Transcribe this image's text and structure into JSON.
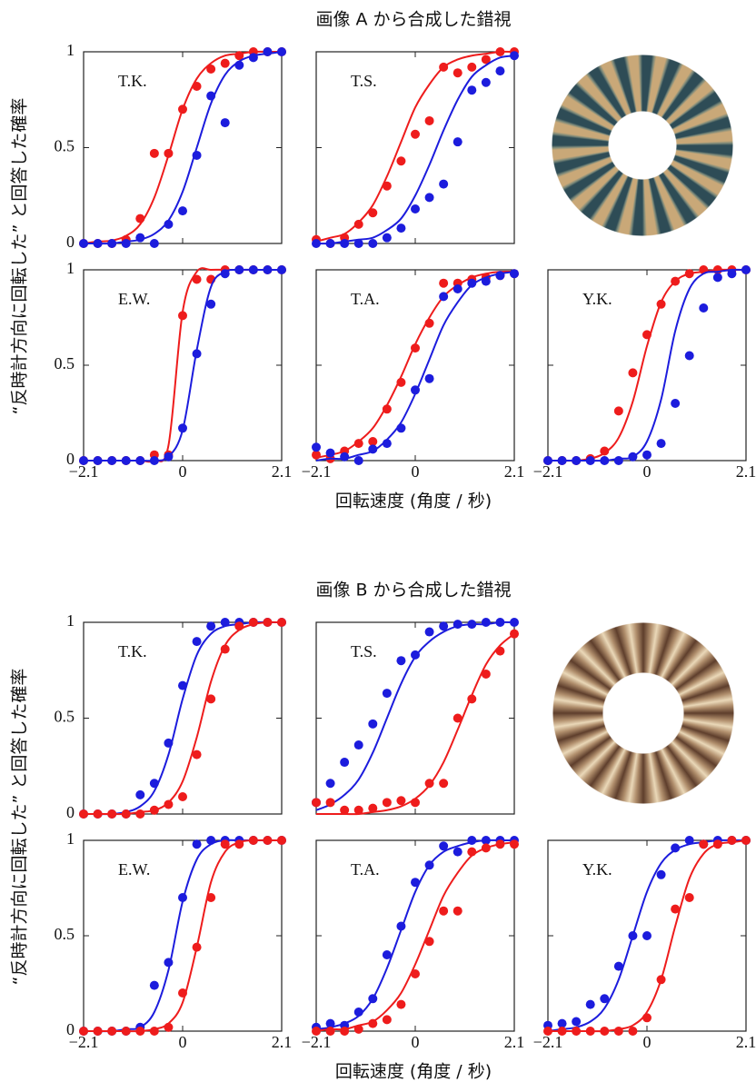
{
  "chart_data": [
    {
      "type": "scatter",
      "title": "画像 A から合成した錯視",
      "xlabel": "回転速度 (角度 / 秒)",
      "ylabel": "“反時計方向に回転した” と回答した確率",
      "xlim": [
        -2.1,
        2.1
      ],
      "ylim": [
        0,
        1
      ],
      "xticks": [
        {
          "value": -2.1,
          "label": "−2.1"
        },
        0,
        2.1
      ],
      "yticks": [
        0,
        0.5,
        1
      ],
      "x": [
        -2.1,
        -1.8,
        -1.5,
        -1.2,
        -0.9,
        -0.6,
        -0.3,
        0,
        0.3,
        0.6,
        0.9,
        1.2,
        1.5,
        1.8,
        2.1
      ],
      "panels": [
        {
          "label": "T.K.",
          "series": [
            {
              "color": "#ee1c1c",
              "values": [
                0,
                0,
                0,
                0.02,
                0.13,
                0.47,
                0.47,
                0.7,
                0.82,
                0.91,
                0.94,
                0.98,
                1,
                1,
                1
              ],
              "fit": [
                0,
                0.01,
                0.015,
                0.04,
                0.1,
                0.24,
                0.46,
                0.7,
                0.86,
                0.94,
                0.98,
                0.99,
                1,
                1,
                1
              ]
            },
            {
              "color": "#1c1cdd",
              "values": [
                0,
                0,
                0,
                0,
                0.03,
                0,
                0.1,
                0.17,
                0.46,
                0.77,
                0.63,
                0.93,
                0.97,
                1,
                1
              ],
              "fit": [
                0,
                0,
                0,
                0.01,
                0.02,
                0.05,
                0.12,
                0.27,
                0.5,
                0.73,
                0.88,
                0.95,
                0.98,
                0.99,
                1
              ]
            }
          ]
        },
        {
          "label": "T.S.",
          "series": [
            {
              "color": "#ee1c1c",
              "values": [
                0.02,
                0,
                0.03,
                0.1,
                0.16,
                0.3,
                0.43,
                0.57,
                0.64,
                0.92,
                0.89,
                0.92,
                0.96,
                1,
                1
              ],
              "fit": [
                0.01,
                0.03,
                0.05,
                0.11,
                0.2,
                0.35,
                0.53,
                0.71,
                0.83,
                0.92,
                0.96,
                0.98,
                0.99,
                1,
                1
              ]
            },
            {
              "color": "#1c1cdd",
              "values": [
                0,
                0,
                0,
                0,
                0,
                0.03,
                0.08,
                0.18,
                0.24,
                0.31,
                0.53,
                0.8,
                0.84,
                0.9,
                0.98
              ],
              "fit": [
                0,
                0,
                0.01,
                0.02,
                0.03,
                0.07,
                0.13,
                0.25,
                0.41,
                0.59,
                0.75,
                0.87,
                0.93,
                0.97,
                0.98
              ]
            }
          ]
        },
        {
          "label": "E.W.",
          "series": [
            {
              "color": "#ee1c1c",
              "values": [
                0,
                0,
                0,
                0,
                0,
                0.03,
                0.03,
                0.76,
                0.95,
                0.95,
                1,
                1,
                1,
                1,
                1
              ],
              "fit": [
                0,
                0,
                0,
                0,
                0,
                0,
                0.08,
                0.78,
                0.99,
                1,
                1,
                1,
                1,
                1,
                1
              ]
            },
            {
              "color": "#1c1cdd",
              "values": [
                0,
                0,
                0,
                0,
                0,
                0,
                0.02,
                0.17,
                0.56,
                0.82,
                0.98,
                1,
                1,
                1,
                1
              ],
              "fit": [
                0,
                0,
                0,
                0,
                0,
                0,
                0.02,
                0.16,
                0.58,
                0.91,
                0.99,
                1,
                1,
                1,
                1
              ]
            }
          ]
        },
        {
          "label": "T.A.",
          "series": [
            {
              "color": "#ee1c1c",
              "values": [
                0.03,
                0.01,
                0.05,
                0.09,
                0.1,
                0.27,
                0.41,
                0.59,
                0.72,
                0.93,
                0.93,
                0.95,
                0.96,
                0.97,
                0.98
              ],
              "fit": [
                0.015,
                0.03,
                0.05,
                0.1,
                0.17,
                0.29,
                0.44,
                0.61,
                0.75,
                0.86,
                0.92,
                0.96,
                0.98,
                0.99,
                0.99
              ]
            },
            {
              "color": "#1c1cdd",
              "values": [
                0.07,
                0.04,
                0.02,
                0,
                0.06,
                0.09,
                0.17,
                0.37,
                0.43,
                0.86,
                0.9,
                0.93,
                0.94,
                0.97,
                0.98
              ],
              "fit": [
                0,
                0.01,
                0.01,
                0.03,
                0.05,
                0.11,
                0.2,
                0.35,
                0.53,
                0.71,
                0.83,
                0.92,
                0.96,
                0.98,
                0.99
              ]
            }
          ]
        },
        {
          "label": "Y.K.",
          "series": [
            {
              "color": "#ee1c1c",
              "values": [
                0,
                0,
                0,
                0.01,
                0.05,
                0.26,
                0.46,
                0.66,
                0.82,
                0.94,
                0.98,
                1,
                1,
                1,
                1
              ],
              "fit": [
                0,
                0,
                0,
                0.01,
                0.04,
                0.12,
                0.31,
                0.6,
                0.83,
                0.94,
                0.98,
                0.99,
                1,
                1,
                1
              ]
            },
            {
              "color": "#1c1cdd",
              "values": [
                0,
                0,
                0,
                0,
                0,
                0,
                0.02,
                0.03,
                0.09,
                0.3,
                0.55,
                0.8,
                0.96,
                0.98,
                1
              ],
              "fit": [
                0,
                0,
                0,
                0,
                0,
                0.01,
                0.02,
                0.1,
                0.32,
                0.68,
                0.9,
                0.98,
                0.99,
                1,
                1
              ]
            }
          ]
        }
      ]
    },
    {
      "type": "scatter",
      "title": "画像 B から合成した錯視",
      "xlabel": "回転速度 (角度 / 秒)",
      "ylabel": "“反時計方向に回転した” と回答した確率",
      "xlim": [
        -2.1,
        2.1
      ],
      "ylim": [
        0,
        1
      ],
      "xticks": [
        {
          "value": -2.1,
          "label": "−2.1"
        },
        0,
        2.1
      ],
      "yticks": [
        0,
        0.5,
        1
      ],
      "x": [
        -2.1,
        -1.8,
        -1.5,
        -1.2,
        -0.9,
        -0.6,
        -0.3,
        0,
        0.3,
        0.6,
        0.9,
        1.2,
        1.5,
        1.8,
        2.1
      ],
      "panels": [
        {
          "label": "T.K.",
          "series": [
            {
              "color": "#1c1cdd",
              "values": [
                0,
                0,
                0,
                0,
                0.1,
                0.16,
                0.37,
                0.67,
                0.9,
                0.98,
                1,
                1,
                1,
                1,
                1
              ],
              "fit": [
                0,
                0,
                0,
                0.01,
                0.04,
                0.12,
                0.31,
                0.6,
                0.83,
                0.94,
                0.98,
                0.99,
                1,
                1,
                1
              ]
            },
            {
              "color": "#ee1c1c",
              "values": [
                0,
                0,
                0,
                0,
                0,
                0.02,
                0.05,
                0.09,
                0.31,
                0.6,
                0.86,
                0.98,
                1,
                1,
                1
              ],
              "fit": [
                0,
                0,
                0,
                0,
                0.01,
                0.02,
                0.06,
                0.17,
                0.4,
                0.69,
                0.88,
                0.96,
                0.99,
                1,
                1
              ]
            }
          ]
        },
        {
          "label": "T.S.",
          "series": [
            {
              "color": "#1c1cdd",
              "values": [
                0.06,
                0.16,
                0.27,
                0.36,
                0.47,
                0.63,
                0.8,
                0.83,
                0.95,
                0.98,
                0.99,
                0.99,
                1,
                1,
                1
              ],
              "fit": [
                0.02,
                0.05,
                0.1,
                0.18,
                0.32,
                0.5,
                0.68,
                0.82,
                0.9,
                0.95,
                0.98,
                0.99,
                0.99,
                1,
                1
              ]
            },
            {
              "color": "#ee1c1c",
              "values": [
                0.06,
                0.06,
                0.02,
                0.02,
                0.03,
                0.06,
                0.07,
                0.06,
                0.16,
                0.16,
                0.5,
                0.6,
                0.73,
                0.85,
                0.94
              ],
              "fit": [
                0,
                0,
                0,
                0,
                0.01,
                0.02,
                0.04,
                0.08,
                0.15,
                0.27,
                0.44,
                0.62,
                0.78,
                0.88,
                0.94
              ]
            }
          ]
        },
        {
          "label": "E.W.",
          "series": [
            {
              "color": "#1c1cdd",
              "values": [
                0,
                0,
                0,
                0,
                0.02,
                0.24,
                0.36,
                0.7,
                0.98,
                1,
                1,
                1,
                1,
                1,
                1
              ],
              "fit": [
                0,
                0,
                0,
                0.01,
                0.02,
                0.1,
                0.32,
                0.68,
                0.9,
                0.98,
                1,
                1,
                1,
                1,
                1
              ]
            },
            {
              "color": "#ee1c1c",
              "values": [
                0,
                0,
                0,
                0,
                0,
                0,
                0.02,
                0.2,
                0.44,
                0.7,
                0.98,
                0.98,
                1,
                1,
                1
              ],
              "fit": [
                0,
                0,
                0,
                0,
                0,
                0.01,
                0.04,
                0.15,
                0.44,
                0.78,
                0.94,
                0.99,
                1,
                1,
                1
              ]
            }
          ]
        },
        {
          "label": "T.A.",
          "series": [
            {
              "color": "#1c1cdd",
              "values": [
                0.02,
                0.04,
                0.03,
                0.1,
                0.17,
                0.4,
                0.55,
                0.78,
                0.87,
                0.97,
                0.94,
                1,
                1,
                1,
                1
              ],
              "fit": [
                0.01,
                0.02,
                0.04,
                0.08,
                0.17,
                0.33,
                0.53,
                0.73,
                0.87,
                0.94,
                0.97,
                0.99,
                1,
                1,
                1
              ]
            },
            {
              "color": "#ee1c1c",
              "values": [
                0,
                0,
                0,
                0.01,
                0.04,
                0.06,
                0.14,
                0.3,
                0.47,
                0.63,
                0.63,
                0.94,
                0.96,
                0.98,
                0.98
              ],
              "fit": [
                0,
                0.01,
                0.01,
                0.03,
                0.05,
                0.11,
                0.2,
                0.35,
                0.53,
                0.71,
                0.83,
                0.92,
                0.96,
                0.98,
                0.99
              ]
            }
          ]
        },
        {
          "label": "Y.K.",
          "series": [
            {
              "color": "#1c1cdd",
              "values": [
                0.03,
                0.04,
                0.05,
                0.14,
                0.17,
                0.34,
                0.5,
                0.5,
                0.82,
                0.96,
                1,
                0.98,
                1,
                1,
                1
              ],
              "fit": [
                0,
                0.01,
                0.02,
                0.05,
                0.12,
                0.27,
                0.5,
                0.73,
                0.88,
                0.95,
                0.98,
                0.99,
                1,
                1,
                1
              ]
            },
            {
              "color": "#ee1c1c",
              "values": [
                0,
                0,
                0,
                0,
                0,
                0,
                0,
                0.07,
                0.27,
                0.64,
                0.7,
                0.98,
                0.98,
                1,
                1
              ],
              "fit": [
                0,
                0,
                0,
                0,
                0,
                0.01,
                0.03,
                0.1,
                0.27,
                0.55,
                0.8,
                0.93,
                0.98,
                0.99,
                1
              ]
            }
          ]
        }
      ]
    }
  ]
}
